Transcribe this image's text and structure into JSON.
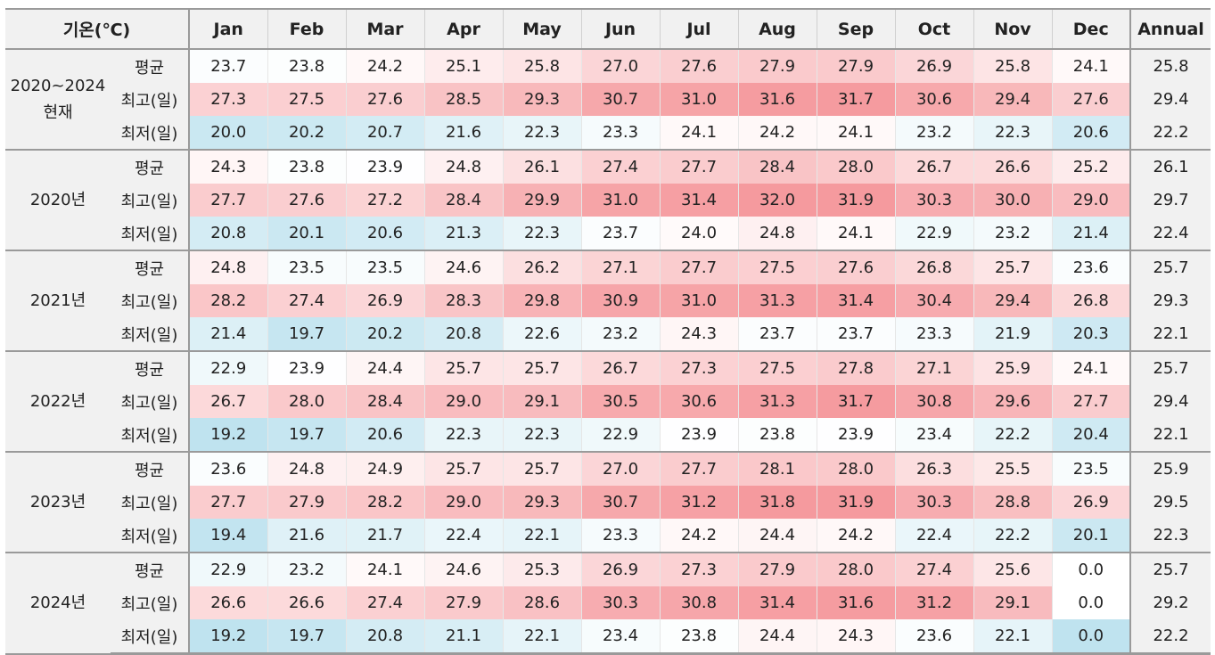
{
  "table": {
    "corner_label": "기온(℃)",
    "annual_label": "Annual",
    "months": [
      "Jan",
      "Feb",
      "Mar",
      "Apr",
      "May",
      "Jun",
      "Jul",
      "Aug",
      "Sep",
      "Oct",
      "Nov",
      "Dec"
    ],
    "colors": {
      "header_bg": "#f1f1f1",
      "hot_strong": "#f59a9e",
      "cold_strong": "#bfe3ef",
      "border": "#9a9a9a"
    },
    "groups": [
      {
        "period": "2020~2024\n현재",
        "rows": [
          {
            "stat": "평균",
            "values": [
              "23.7",
              "23.8",
              "24.2",
              "25.1",
              "25.8",
              "27.0",
              "27.6",
              "27.9",
              "27.9",
              "26.9",
              "25.8",
              "24.1"
            ],
            "annual": "25.8"
          },
          {
            "stat": "최고(일)",
            "values": [
              "27.3",
              "27.5",
              "27.6",
              "28.5",
              "29.3",
              "30.7",
              "31.0",
              "31.6",
              "31.7",
              "30.6",
              "29.4",
              "27.6"
            ],
            "annual": "29.4"
          },
          {
            "stat": "최저(일)",
            "values": [
              "20.0",
              "20.2",
              "20.7",
              "21.6",
              "22.3",
              "23.3",
              "24.1",
              "24.2",
              "24.1",
              "23.2",
              "22.3",
              "20.6"
            ],
            "annual": "22.2"
          }
        ]
      },
      {
        "period": "2020년",
        "rows": [
          {
            "stat": "평균",
            "values": [
              "24.3",
              "23.8",
              "23.9",
              "24.8",
              "26.1",
              "27.4",
              "27.7",
              "28.4",
              "28.0",
              "26.7",
              "26.6",
              "25.2"
            ],
            "annual": "26.1"
          },
          {
            "stat": "최고(일)",
            "values": [
              "27.7",
              "27.6",
              "27.2",
              "28.4",
              "29.9",
              "31.0",
              "31.4",
              "32.0",
              "31.9",
              "30.3",
              "30.0",
              "29.0"
            ],
            "annual": "29.7"
          },
          {
            "stat": "최저(일)",
            "values": [
              "20.8",
              "20.1",
              "20.6",
              "21.3",
              "22.3",
              "23.7",
              "24.0",
              "24.8",
              "24.1",
              "22.9",
              "23.2",
              "21.4"
            ],
            "annual": "22.4"
          }
        ]
      },
      {
        "period": "2021년",
        "rows": [
          {
            "stat": "평균",
            "values": [
              "24.8",
              "23.5",
              "23.5",
              "24.6",
              "26.2",
              "27.1",
              "27.7",
              "27.5",
              "27.6",
              "26.8",
              "25.7",
              "23.6"
            ],
            "annual": "25.7"
          },
          {
            "stat": "최고(일)",
            "values": [
              "28.2",
              "27.4",
              "26.9",
              "28.3",
              "29.8",
              "30.9",
              "31.0",
              "31.3",
              "31.4",
              "30.4",
              "29.4",
              "26.8"
            ],
            "annual": "29.3"
          },
          {
            "stat": "최저(일)",
            "values": [
              "21.4",
              "19.7",
              "20.2",
              "20.8",
              "22.6",
              "23.2",
              "24.3",
              "23.7",
              "23.7",
              "23.3",
              "21.9",
              "20.3"
            ],
            "annual": "22.1"
          }
        ]
      },
      {
        "period": "2022년",
        "rows": [
          {
            "stat": "평균",
            "values": [
              "22.9",
              "23.9",
              "24.4",
              "25.7",
              "25.7",
              "26.7",
              "27.3",
              "27.5",
              "27.8",
              "27.1",
              "25.9",
              "24.1"
            ],
            "annual": "25.7"
          },
          {
            "stat": "최고(일)",
            "values": [
              "26.7",
              "28.0",
              "28.4",
              "29.0",
              "29.1",
              "30.5",
              "30.6",
              "31.3",
              "31.7",
              "30.8",
              "29.6",
              "27.7"
            ],
            "annual": "29.4"
          },
          {
            "stat": "최저(일)",
            "values": [
              "19.2",
              "19.7",
              "20.6",
              "22.3",
              "22.3",
              "22.9",
              "23.9",
              "23.8",
              "23.9",
              "23.4",
              "22.2",
              "20.4"
            ],
            "annual": "22.1"
          }
        ]
      },
      {
        "period": "2023년",
        "rows": [
          {
            "stat": "평균",
            "values": [
              "23.6",
              "24.8",
              "24.9",
              "25.7",
              "25.7",
              "27.0",
              "27.7",
              "28.1",
              "28.0",
              "26.3",
              "25.5",
              "23.5"
            ],
            "annual": "25.9"
          },
          {
            "stat": "최고(일)",
            "values": [
              "27.7",
              "27.9",
              "28.2",
              "29.0",
              "29.3",
              "30.7",
              "31.2",
              "31.8",
              "31.9",
              "30.3",
              "28.8",
              "26.9"
            ],
            "annual": "29.5"
          },
          {
            "stat": "최저(일)",
            "values": [
              "19.4",
              "21.6",
              "21.7",
              "22.4",
              "22.1",
              "23.3",
              "24.2",
              "24.4",
              "24.2",
              "22.4",
              "22.2",
              "20.1"
            ],
            "annual": "22.3"
          }
        ]
      },
      {
        "period": "2024년",
        "rows": [
          {
            "stat": "평균",
            "values": [
              "22.9",
              "23.2",
              "24.1",
              "24.6",
              "25.3",
              "26.9",
              "27.3",
              "27.9",
              "28.0",
              "27.4",
              "25.6",
              "0.0"
            ],
            "annual": "25.7"
          },
          {
            "stat": "최고(일)",
            "values": [
              "26.6",
              "26.6",
              "27.4",
              "27.9",
              "28.6",
              "30.3",
              "30.8",
              "31.4",
              "31.6",
              "31.2",
              "29.1",
              "0.0"
            ],
            "annual": "29.2"
          },
          {
            "stat": "최저(일)",
            "values": [
              "19.2",
              "19.7",
              "20.8",
              "21.1",
              "22.1",
              "23.4",
              "23.8",
              "24.4",
              "24.3",
              "23.6",
              "22.1",
              "0.0"
            ],
            "annual": "22.2"
          }
        ]
      }
    ]
  }
}
